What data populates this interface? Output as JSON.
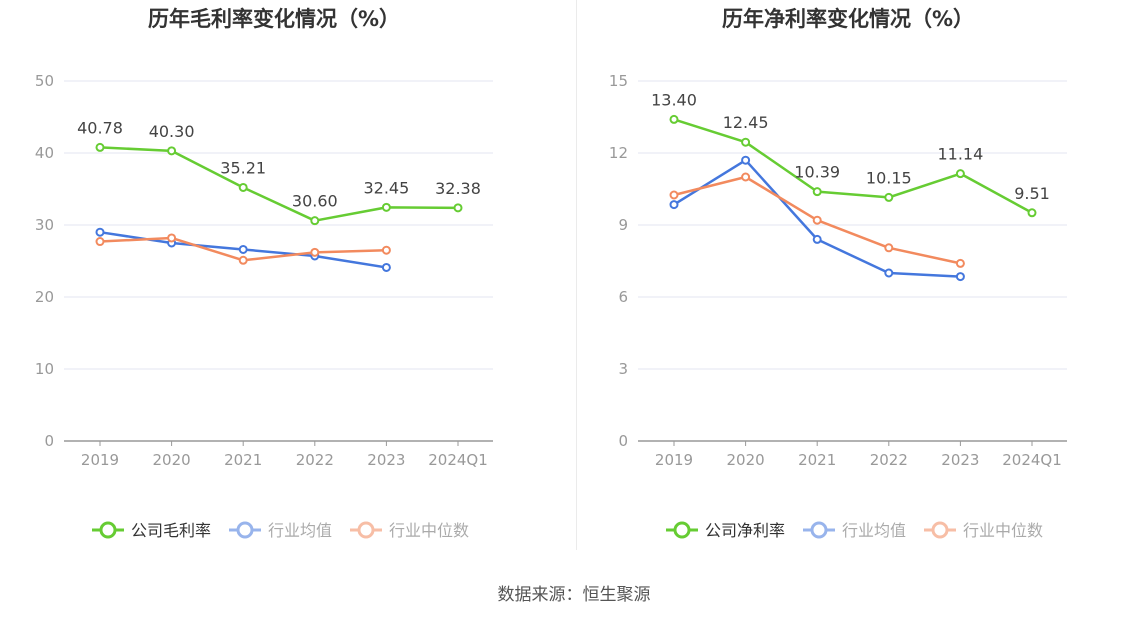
{
  "footer": {
    "source": "数据来源：恒生聚源"
  },
  "colors": {
    "company": "#66cc33",
    "industry_avg": "#4477dd",
    "industry_median": "#f28a5e",
    "grid": "#e3e6f0",
    "axis": "#999999",
    "tick_text": "#999999",
    "title_text": "#333333",
    "label_text": "#444444"
  },
  "chart_data": [
    {
      "type": "line",
      "title": "历年毛利率变化情况（%）",
      "categories": [
        "2019",
        "2020",
        "2021",
        "2022",
        "2023",
        "2024Q1"
      ],
      "ylim": [
        0,
        50
      ],
      "yticks": [
        0,
        10,
        20,
        30,
        40,
        50
      ],
      "grid": true,
      "legend_position": "bottom",
      "series": [
        {
          "name": "公司毛利率",
          "key": "company",
          "values": [
            40.78,
            40.3,
            35.21,
            30.6,
            32.45,
            32.38
          ],
          "labels": [
            "40.78",
            "40.30",
            "35.21",
            "30.60",
            "32.45",
            "32.38"
          ]
        },
        {
          "name": "行业均值",
          "key": "industry_avg",
          "values": [
            29.0,
            27.5,
            26.6,
            25.7,
            24.1,
            null
          ]
        },
        {
          "name": "行业中位数",
          "key": "industry_median",
          "values": [
            27.7,
            28.2,
            25.1,
            26.2,
            26.5,
            null
          ]
        }
      ]
    },
    {
      "type": "line",
      "title": "历年净利率变化情况（%）",
      "categories": [
        "2019",
        "2020",
        "2021",
        "2022",
        "2023",
        "2024Q1"
      ],
      "ylim": [
        0,
        15
      ],
      "yticks": [
        0,
        3,
        6,
        9,
        12,
        15
      ],
      "grid": true,
      "legend_position": "bottom",
      "series": [
        {
          "name": "公司净利率",
          "key": "company",
          "values": [
            13.4,
            12.45,
            10.39,
            10.15,
            11.14,
            9.51
          ],
          "labels": [
            "13.40",
            "12.45",
            "10.39",
            "10.15",
            "11.14",
            "9.51"
          ]
        },
        {
          "name": "行业均值",
          "key": "industry_avg",
          "values": [
            9.85,
            11.7,
            8.4,
            7.0,
            6.85,
            null
          ]
        },
        {
          "name": "行业中位数",
          "key": "industry_median",
          "values": [
            10.25,
            11.0,
            9.2,
            8.05,
            7.4,
            null
          ]
        }
      ]
    }
  ]
}
